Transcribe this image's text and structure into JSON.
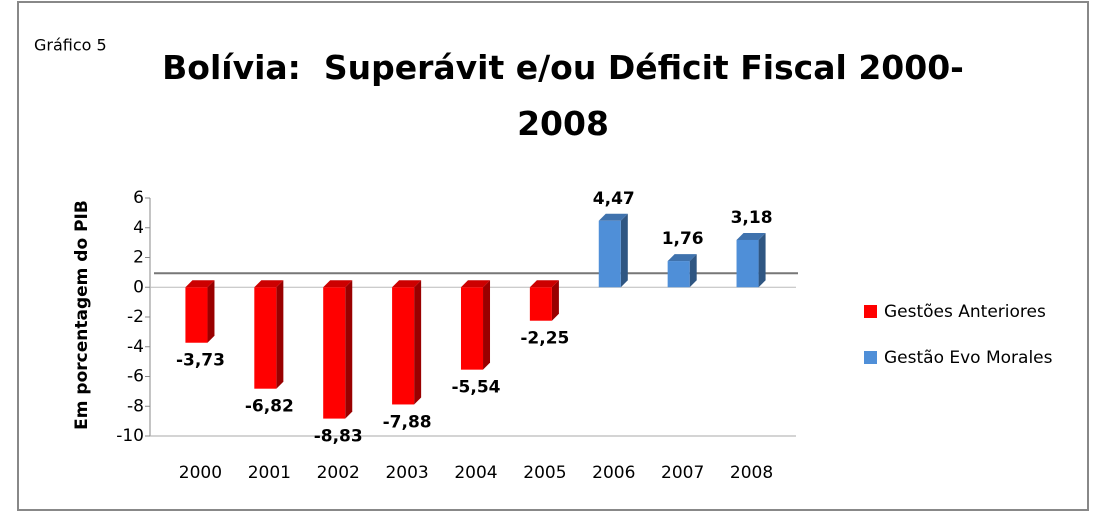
{
  "chart_data": {
    "type": "bar",
    "title": "Bolívia:  Superávit e/ou Déficit Fiscal 2000-2008",
    "annotation": "Gráfico 5",
    "y_label": "Em porcentagem do PIB",
    "categories": [
      "2000",
      "2001",
      "2002",
      "2003",
      "2004",
      "2005",
      "2006",
      "2007",
      "2008"
    ],
    "series": [
      {
        "name": "Gestões Anteriores",
        "color": "#ff0000",
        "values": [
          -3.73,
          -6.82,
          -8.83,
          -7.88,
          -5.54,
          -2.25,
          null,
          null,
          null
        ],
        "value_labels": [
          "-3,73",
          "-6,82",
          "-8,83",
          "-7,88",
          "-5,54",
          "-2,25",
          null,
          null,
          null
        ]
      },
      {
        "name": "Gestão Evo Morales",
        "color": "#4f8fd8",
        "values": [
          null,
          null,
          null,
          null,
          null,
          null,
          4.47,
          1.76,
          3.18
        ],
        "value_labels": [
          null,
          null,
          null,
          null,
          null,
          null,
          "4,47",
          "1,76",
          "3,18"
        ]
      }
    ],
    "ylim": [
      -10,
      6
    ],
    "yticks": [
      6,
      4,
      2,
      0,
      -2,
      -4,
      -6,
      -8,
      -10
    ],
    "legend": "right",
    "grid": false
  }
}
